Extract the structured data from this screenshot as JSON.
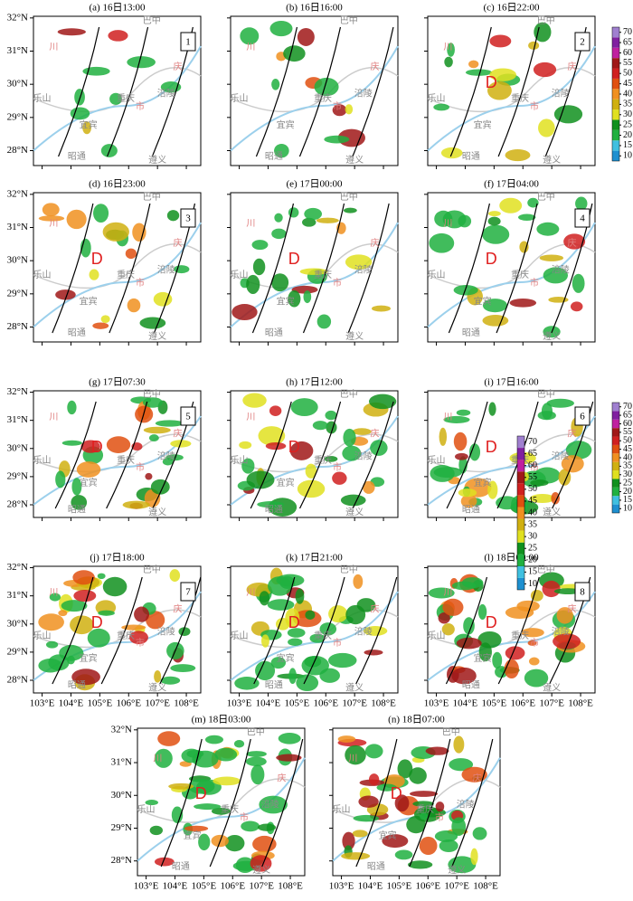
{
  "panels": [
    {
      "title": "(a) 16日13:00",
      "box": "1"
    },
    {
      "title": "(b) 16日16:00"
    },
    {
      "title": "(c) 16日22:00",
      "box": "2",
      "low": "D"
    },
    {
      "title": "(d) 16日23:00",
      "box": "3",
      "low": "D"
    },
    {
      "title": "(e) 17日00:00",
      "low": "D"
    },
    {
      "title": "(f) 17日04:00",
      "box": "4",
      "low": "D"
    },
    {
      "title": "(g) 17日07:30",
      "box": "5",
      "low": "D"
    },
    {
      "title": "(h) 17日12:00",
      "low": "D"
    },
    {
      "title": "(i) 17日16:00",
      "box": "6",
      "low": "D"
    },
    {
      "title": "(j) 17日18:00",
      "box": "7",
      "low": "D"
    },
    {
      "title": "(k) 17日21:00",
      "low": "D"
    },
    {
      "title": "(l) 18日00:00",
      "box": "8",
      "low": "D"
    },
    {
      "title": "(m) 18日03:00",
      "low": "D"
    },
    {
      "title": "(n) 18日07:00",
      "low": "D"
    }
  ],
  "map": {
    "xlim": [
      102.7,
      108.5
    ],
    "ylim": [
      27.55,
      32.05
    ],
    "lat_ticks": [
      {
        "value": 32,
        "label": "32°N"
      },
      {
        "value": 31,
        "label": "31°N"
      },
      {
        "value": 30,
        "label": "30°N"
      },
      {
        "value": 29,
        "label": "29°N"
      },
      {
        "value": 28,
        "label": "28°N"
      }
    ],
    "lon_ticks": [
      {
        "value": 103,
        "label": "103°E"
      },
      {
        "value": 104,
        "label": "104°E"
      },
      {
        "value": 105,
        "label": "105°E"
      },
      {
        "value": 106,
        "label": "106°E"
      },
      {
        "value": 107,
        "label": "107°E"
      },
      {
        "value": 108,
        "label": "108°E"
      }
    ],
    "places": [
      {
        "name": "乐山",
        "lon": 103.0,
        "lat": 29.55
      },
      {
        "name": "重庆",
        "lon": 105.9,
        "lat": 29.55
      },
      {
        "name": "宜宾",
        "lon": 104.6,
        "lat": 28.75
      },
      {
        "name": "昭通",
        "lon": 104.2,
        "lat": 27.8
      },
      {
        "name": "遵义",
        "lon": 107.0,
        "lat": 27.7
      },
      {
        "name": "涪陵",
        "lon": 107.3,
        "lat": 29.7
      },
      {
        "name": "巴中",
        "lon": 106.8,
        "lat": 31.9
      },
      {
        "name": "川",
        "lon": 103.4,
        "lat": 31.1
      },
      {
        "name": "庆",
        "lon": 107.7,
        "lat": 30.5
      },
      {
        "name": "市",
        "lon": 106.4,
        "lat": 29.3
      }
    ]
  },
  "colorbar": {
    "ticks": [
      10,
      15,
      20,
      25,
      30,
      35,
      40,
      45,
      50,
      55,
      60,
      65,
      70
    ],
    "colors": [
      "#1e90d0",
      "#3fc0e0",
      "#20b040",
      "#10901e",
      "#e0e020",
      "#d0b010",
      "#f09020",
      "#e05010",
      "#d02020",
      "#a01818",
      "#c020a0",
      "#8020a0",
      "#a080d0"
    ]
  }
}
